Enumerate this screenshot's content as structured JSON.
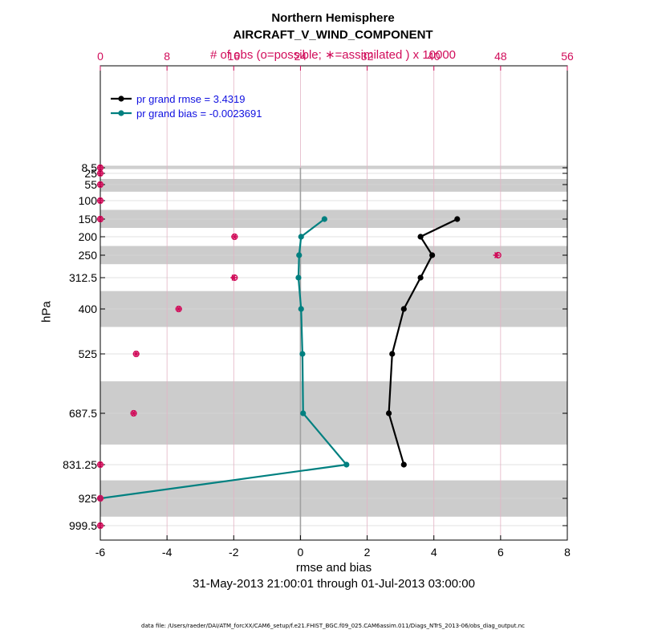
{
  "title": "Northern Hemisphere",
  "subtitle": "AIRCRAFT_V_WIND_COMPONENT",
  "top_axis_label": "# of obs (o=possible; ∗=assimilated ) x 10000",
  "x_axis_label": "rmse and bias",
  "y_axis_label": "hPa",
  "date_range": "31-May-2013 21:00:01 through 01-Jul-2013 03:00:00",
  "data_file": "data file: /Users/raeder/DAI/ATM_forcXX/CAM6_setup/f.e21.FHIST_BGC.f09_025.CAM6assim.011/Diags_NTrS_2013-06/obs_diag_output.nc",
  "colors": {
    "rmse": "#000000",
    "bias": "#008080",
    "obs": "#d10c5a",
    "band": "#cccccc",
    "legend_text": "#1010e0"
  },
  "chart_data": {
    "type": "line",
    "title": "Northern Hemisphere",
    "subtitle": "AIRCRAFT_V_WIND_COMPONENT",
    "xlabel": "rmse and bias",
    "ylabel": "hPa",
    "xlim": [
      -6,
      8
    ],
    "x_ticks": [
      -6,
      -4,
      -2,
      0,
      2,
      4,
      6,
      8
    ],
    "x_tick_labels": [
      "-6",
      "-4",
      "-2",
      "0",
      "2",
      "4",
      "6",
      "8"
    ],
    "top_axis": {
      "label": "# of obs (o=possible; ∗=assimilated ) x 10000",
      "lim": [
        0,
        56
      ],
      "ticks": [
        0,
        8,
        16,
        24,
        32,
        40,
        48,
        56
      ],
      "tick_labels": [
        "0",
        "8",
        "16",
        "24",
        "32",
        "40",
        "48",
        "56"
      ]
    },
    "y_ticks": [
      8.5,
      25,
      55,
      100,
      150,
      200,
      250,
      312.5,
      400,
      525,
      687.5,
      831.25,
      925,
      999.5
    ],
    "y_tick_labels": [
      "8.5",
      "25",
      "55",
      "100",
      "150",
      "200",
      "250",
      "312.5",
      "400",
      "525",
      "687.5",
      "831.25",
      "925",
      "999.5"
    ],
    "y_direction": "reverse",
    "bands_hPa": [
      [
        5,
        12.5
      ],
      [
        40,
        75
      ],
      [
        125,
        175
      ],
      [
        225,
        275
      ],
      [
        350,
        450
      ],
      [
        600,
        775
      ],
      [
        875,
        975
      ]
    ],
    "series": [
      {
        "name": "pr grand rmse = 3.4319",
        "levels": [
          150,
          200,
          250,
          312.5,
          400,
          525,
          687.5,
          831.25
        ],
        "values": [
          4.7,
          3.6,
          3.95,
          3.6,
          3.1,
          2.75,
          2.65,
          3.1
        ]
      },
      {
        "name": "pr grand bias = -0.0023691",
        "levels": [
          150,
          200,
          250,
          312.5,
          400,
          525,
          687.5,
          831.25,
          925
        ],
        "values": [
          0.72,
          0.02,
          -0.04,
          -0.06,
          0.02,
          0.06,
          0.08,
          1.38,
          -6.0
        ]
      }
    ],
    "obs_counts": {
      "levels": [
        8.5,
        25,
        55,
        100,
        150,
        200,
        250,
        312.5,
        400,
        525,
        687.5,
        831.25,
        925,
        999.5
      ],
      "possible": [
        0,
        0,
        0,
        0,
        0,
        16.1,
        47.7,
        16.1,
        9.4,
        4.3,
        4.0,
        0,
        0,
        0
      ],
      "assimilated": [
        0,
        0,
        0,
        0,
        0,
        16.1,
        47.5,
        16.0,
        9.4,
        4.3,
        4.0,
        0,
        0,
        0
      ]
    },
    "legend": {
      "position": "top-left",
      "entries": [
        "pr grand rmse = 3.4319",
        "pr grand bias = -0.0023691"
      ]
    }
  }
}
